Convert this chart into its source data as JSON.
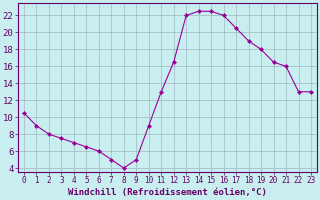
{
  "x": [
    0,
    1,
    2,
    3,
    4,
    5,
    6,
    7,
    8,
    9,
    10,
    11,
    12,
    13,
    14,
    15,
    16,
    17,
    18,
    19,
    20,
    21,
    22,
    23
  ],
  "y": [
    10.5,
    9.0,
    8.0,
    7.5,
    7.0,
    6.5,
    6.0,
    5.0,
    4.0,
    5.0,
    9.0,
    13.0,
    16.5,
    22.0,
    22.5,
    22.5,
    22.0,
    20.5,
    19.0,
    18.0,
    16.5,
    16.0,
    13.0,
    13.0
  ],
  "line_color": "#990099",
  "marker": "D",
  "marker_size": 2.0,
  "bg_color": "#c8eef0",
  "grid_color": "#a0b8c0",
  "xlabel": "Windchill (Refroidissement éolien,°C)",
  "yticks": [
    4,
    6,
    8,
    10,
    12,
    14,
    16,
    18,
    20,
    22
  ],
  "xlim": [
    -0.5,
    23.5
  ],
  "ylim": [
    3.5,
    23.5
  ],
  "axis_color": "#660066",
  "tick_label_color": "#660066",
  "xlabel_color": "#660066",
  "xlabel_fontsize": 6.5,
  "ytick_fontsize": 6.5,
  "xtick_fontsize": 5.5
}
